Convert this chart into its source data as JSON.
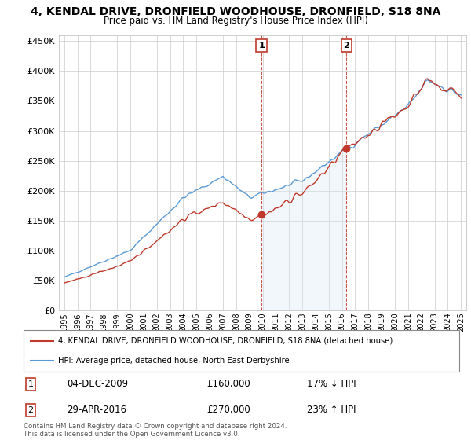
{
  "title": "4, KENDAL DRIVE, DRONFIELD WOODHOUSE, DRONFIELD, S18 8NA",
  "subtitle": "Price paid vs. HM Land Registry's House Price Index (HPI)",
  "ylim": [
    0,
    460000
  ],
  "yticks": [
    0,
    50000,
    100000,
    150000,
    200000,
    250000,
    300000,
    350000,
    400000,
    450000
  ],
  "ytick_labels": [
    "£0",
    "£50K",
    "£100K",
    "£150K",
    "£200K",
    "£250K",
    "£300K",
    "£350K",
    "£400K",
    "£450K"
  ],
  "hpi_color": "#5b9bd5",
  "hpi_fill_color": "#dce9f5",
  "price_color": "#c0392b",
  "sale1_date_num": 2009.92,
  "sale1_price": 160000,
  "sale1_label": "1",
  "sale1_pct": "17% ↓ HPI",
  "sale1_date_str": "04-DEC-2009",
  "sale2_date_num": 2016.33,
  "sale2_price": 270000,
  "sale2_label": "2",
  "sale2_pct": "23% ↑ HPI",
  "sale2_date_str": "29-APR-2016",
  "legend_line1": "4, KENDAL DRIVE, DRONFIELD WOODHOUSE, DRONFIELD, S18 8NA (detached house)",
  "legend_line2": "HPI: Average price, detached house, North East Derbyshire",
  "footer": "Contains HM Land Registry data © Crown copyright and database right 2024.\nThis data is licensed under the Open Government Licence v3.0.",
  "background_color": "#ffffff"
}
